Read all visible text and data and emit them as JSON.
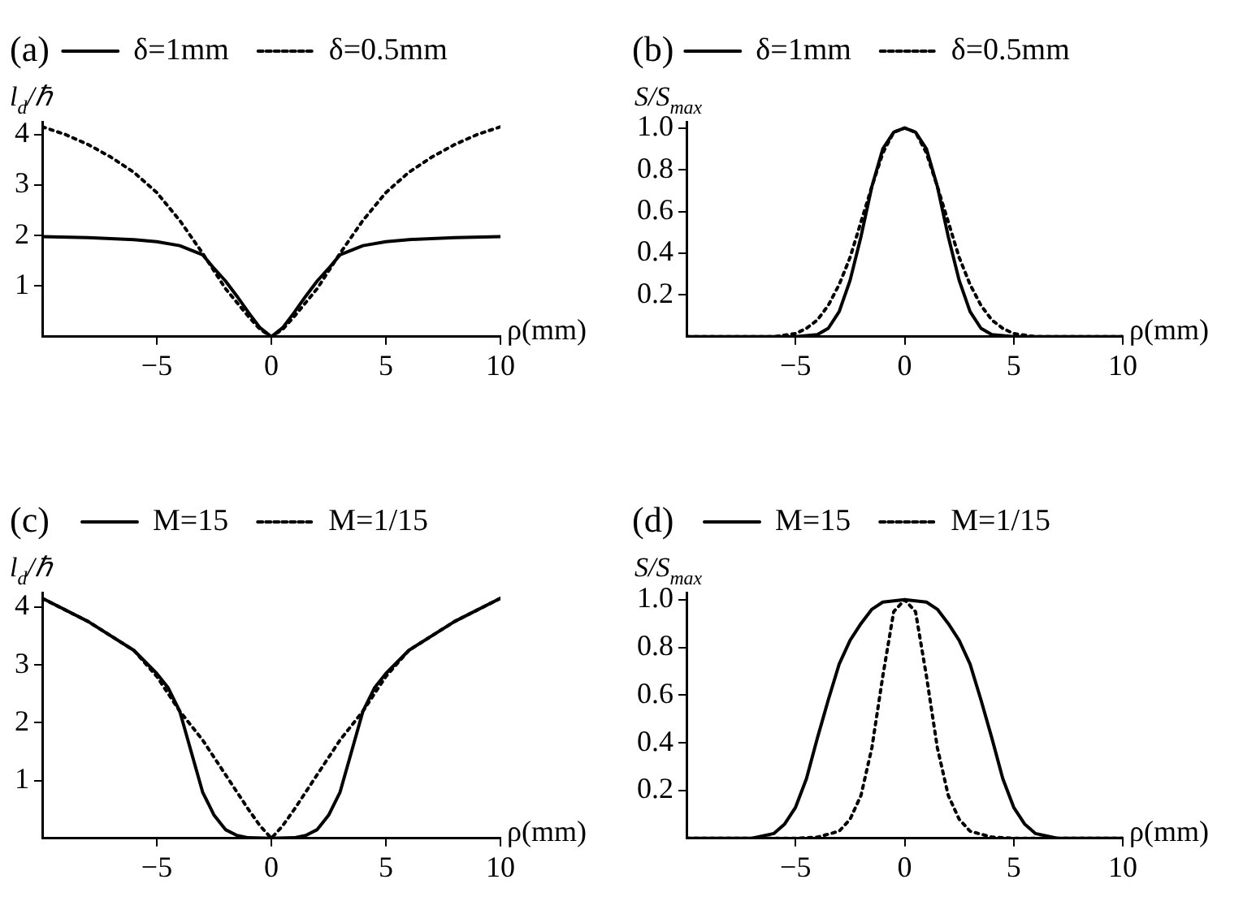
{
  "chart_data": [
    {
      "type": "line",
      "title": "(a)",
      "xlabel": "ρ(mm)",
      "ylabel": "l$_{d}$/ℏ",
      "xlim": [
        -10,
        10
      ],
      "xticks": [
        -5,
        0,
        5,
        10
      ],
      "ylim": [
        0,
        4.25
      ],
      "yticks": [
        1,
        2,
        3,
        4
      ],
      "legend": "top",
      "grid": false,
      "marker": "none",
      "series": [
        {
          "name": "δ=1mm",
          "color": "#000000",
          "line_style": "solid",
          "x": [
            -10,
            -8,
            -6,
            -5,
            -4,
            -3,
            -2.5,
            -2,
            -1.5,
            -1,
            -0.5,
            0,
            0.5,
            1,
            1.5,
            2,
            2.5,
            3,
            4,
            5,
            6,
            8,
            10
          ],
          "values": [
            1.98,
            1.96,
            1.92,
            1.88,
            1.8,
            1.62,
            1.35,
            1.1,
            0.8,
            0.48,
            0.18,
            0,
            0.18,
            0.48,
            0.8,
            1.1,
            1.35,
            1.62,
            1.8,
            1.88,
            1.92,
            1.96,
            1.98
          ]
        },
        {
          "name": "δ=0.5mm",
          "color": "#000000",
          "line_style": "dotted",
          "x": [
            -10,
            -9,
            -8,
            -7,
            -6,
            -5,
            -4,
            -3,
            -2,
            -1,
            -0.5,
            0,
            0.5,
            1,
            2,
            3,
            4,
            5,
            6,
            7,
            8,
            9,
            10
          ],
          "values": [
            4.15,
            4.0,
            3.8,
            3.55,
            3.25,
            2.85,
            2.3,
            1.65,
            0.95,
            0.4,
            0.15,
            0,
            0.15,
            0.4,
            0.95,
            1.65,
            2.3,
            2.85,
            3.25,
            3.55,
            3.8,
            4.0,
            4.15
          ]
        }
      ]
    },
    {
      "type": "line",
      "title": "(b)",
      "xlabel": "ρ(mm)",
      "ylabel": "S/S$_{max}$",
      "xlim": [
        -10,
        10
      ],
      "xticks": [
        -5,
        0,
        5,
        10
      ],
      "ylim": [
        0,
        1.03
      ],
      "yticks": [
        0.2,
        0.4,
        0.6,
        0.8,
        {
          "value": 1,
          "label": "1.0"
        }
      ],
      "legend": "top",
      "grid": false,
      "marker": "none",
      "series": [
        {
          "name": "δ=1mm",
          "color": "#000000",
          "line_style": "solid",
          "x": [
            -10,
            -5,
            -4,
            -3.5,
            -3,
            -2.5,
            -2,
            -1.5,
            -1,
            -0.5,
            0,
            0.5,
            1,
            1.5,
            2,
            2.5,
            3,
            3.5,
            4,
            5,
            10
          ],
          "values": [
            0,
            0,
            0.01,
            0.04,
            0.12,
            0.27,
            0.48,
            0.72,
            0.9,
            0.98,
            1,
            0.98,
            0.9,
            0.72,
            0.48,
            0.27,
            0.12,
            0.04,
            0.01,
            0,
            0
          ]
        },
        {
          "name": "δ=0.5mm",
          "color": "#000000",
          "line_style": "dotted",
          "x": [
            -10,
            -6,
            -5,
            -4.5,
            -4,
            -3.5,
            -3,
            -2.5,
            -2,
            -1.5,
            -1,
            -0.5,
            0,
            0.5,
            1,
            1.5,
            2,
            2.5,
            3,
            3.5,
            4,
            4.5,
            5,
            6,
            10
          ],
          "values": [
            0,
            0,
            0.015,
            0.04,
            0.08,
            0.15,
            0.25,
            0.38,
            0.55,
            0.72,
            0.88,
            0.98,
            1,
            0.98,
            0.88,
            0.72,
            0.55,
            0.38,
            0.25,
            0.15,
            0.08,
            0.04,
            0.015,
            0,
            0
          ]
        }
      ]
    },
    {
      "type": "line",
      "title": "(c)",
      "xlabel": "ρ(mm)",
      "ylabel": "l$_{d}$/ℏ",
      "xlim": [
        -10,
        10
      ],
      "xticks": [
        -5,
        0,
        5,
        10
      ],
      "ylim": [
        0,
        4.25
      ],
      "yticks": [
        1,
        2,
        3,
        4
      ],
      "legend": "top",
      "grid": false,
      "marker": "none",
      "series": [
        {
          "name": "M=15",
          "color": "#000000",
          "line_style": "solid",
          "x": [
            -10,
            -8,
            -6,
            -5,
            -4.5,
            -4,
            -3.5,
            -3,
            -2.5,
            -2,
            -1.5,
            -1,
            0,
            1,
            1.5,
            2,
            2.5,
            3,
            3.5,
            4,
            4.5,
            5,
            6,
            8,
            10
          ],
          "values": [
            4.15,
            3.75,
            3.25,
            2.85,
            2.6,
            2.2,
            1.5,
            0.8,
            0.4,
            0.15,
            0.05,
            0.01,
            0,
            0.01,
            0.05,
            0.15,
            0.4,
            0.8,
            1.5,
            2.2,
            2.6,
            2.85,
            3.25,
            3.75,
            4.15
          ]
        },
        {
          "name": "M=1/15",
          "color": "#000000",
          "line_style": "dotted",
          "x": [
            -10,
            -8,
            -6,
            -5,
            -4,
            -3,
            -2,
            -1,
            -0.5,
            0,
            0.5,
            1,
            2,
            3,
            4,
            5,
            6,
            8,
            10
          ],
          "values": [
            4.15,
            3.75,
            3.25,
            2.8,
            2.2,
            1.7,
            1.1,
            0.5,
            0.22,
            0,
            0.22,
            0.5,
            1.1,
            1.7,
            2.2,
            2.8,
            3.25,
            3.75,
            4.15
          ]
        }
      ]
    },
    {
      "type": "line",
      "title": "(d)",
      "xlabel": "ρ(mm)",
      "ylabel": "S/S$_{max}$",
      "xlim": [
        -10,
        10
      ],
      "xticks": [
        -5,
        0,
        5,
        10
      ],
      "ylim": [
        0,
        1.03
      ],
      "yticks": [
        0.2,
        0.4,
        0.6,
        0.8,
        {
          "value": 1,
          "label": "1.0"
        }
      ],
      "legend": "top",
      "grid": false,
      "marker": "none",
      "series": [
        {
          "name": "M=15",
          "color": "#000000",
          "line_style": "solid",
          "x": [
            -10,
            -7,
            -6,
            -5.5,
            -5,
            -4.5,
            -4,
            -3.5,
            -3,
            -2.5,
            -2,
            -1.5,
            -1,
            0,
            1,
            1.5,
            2,
            2.5,
            3,
            3.5,
            4,
            4.5,
            5,
            5.5,
            6,
            7,
            10
          ],
          "values": [
            0,
            0,
            0.02,
            0.06,
            0.13,
            0.25,
            0.42,
            0.58,
            0.73,
            0.83,
            0.9,
            0.96,
            0.99,
            1,
            0.99,
            0.96,
            0.9,
            0.83,
            0.73,
            0.58,
            0.42,
            0.25,
            0.13,
            0.06,
            0.02,
            0,
            0
          ]
        },
        {
          "name": "M=1/15",
          "color": "#000000",
          "line_style": "dotted",
          "x": [
            -10,
            -5,
            -4,
            -3,
            -2.5,
            -2,
            -1.5,
            -1,
            -0.5,
            0,
            0.5,
            1,
            1.5,
            2,
            2.5,
            3,
            4,
            5,
            10
          ],
          "values": [
            0,
            0,
            0.005,
            0.03,
            0.08,
            0.18,
            0.38,
            0.68,
            0.95,
            1,
            0.95,
            0.68,
            0.38,
            0.18,
            0.08,
            0.03,
            0.005,
            0,
            0
          ]
        }
      ]
    }
  ]
}
